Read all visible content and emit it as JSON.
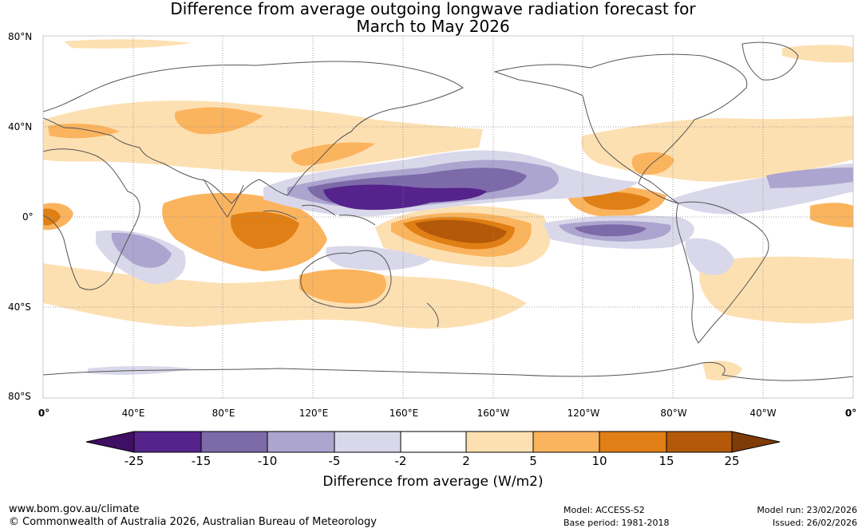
{
  "title": {
    "line1": "Difference from average outgoing longwave radiation forecast for",
    "line2": "March to May 2026"
  },
  "lat_labels": [
    "80°N",
    "40°N",
    "0°",
    "40°S",
    "80°S"
  ],
  "lon_labels": [
    "0°",
    "40°E",
    "80°E",
    "120°E",
    "160°E",
    "160°W",
    "120°W",
    "80°W",
    "40°W",
    "0°"
  ],
  "colorbar": {
    "label": "Difference from average (W/m2)",
    "ticks": [
      "-25",
      "-15",
      "-10",
      "-5",
      "-2",
      "2",
      "5",
      "10",
      "15",
      "25"
    ],
    "colors": [
      "#3f0f63",
      "#56238c",
      "#7d6aa9",
      "#aca5cf",
      "#d9d8ea",
      "#ffffff",
      "#fde0b2",
      "#fbb45e",
      "#e07f15",
      "#b45909",
      "#7f3b08"
    ]
  },
  "footer": {
    "url": "www.bom.gov.au/climate",
    "copyright": "© Commonwealth of Australia 2026, Australian Bureau of Meteorology",
    "model": "Model: ACCESS-S2",
    "base_period": "Base period: 1981-2018",
    "model_run": "Model run: 23/02/2026",
    "issued": "Issued: 26/02/2026"
  }
}
